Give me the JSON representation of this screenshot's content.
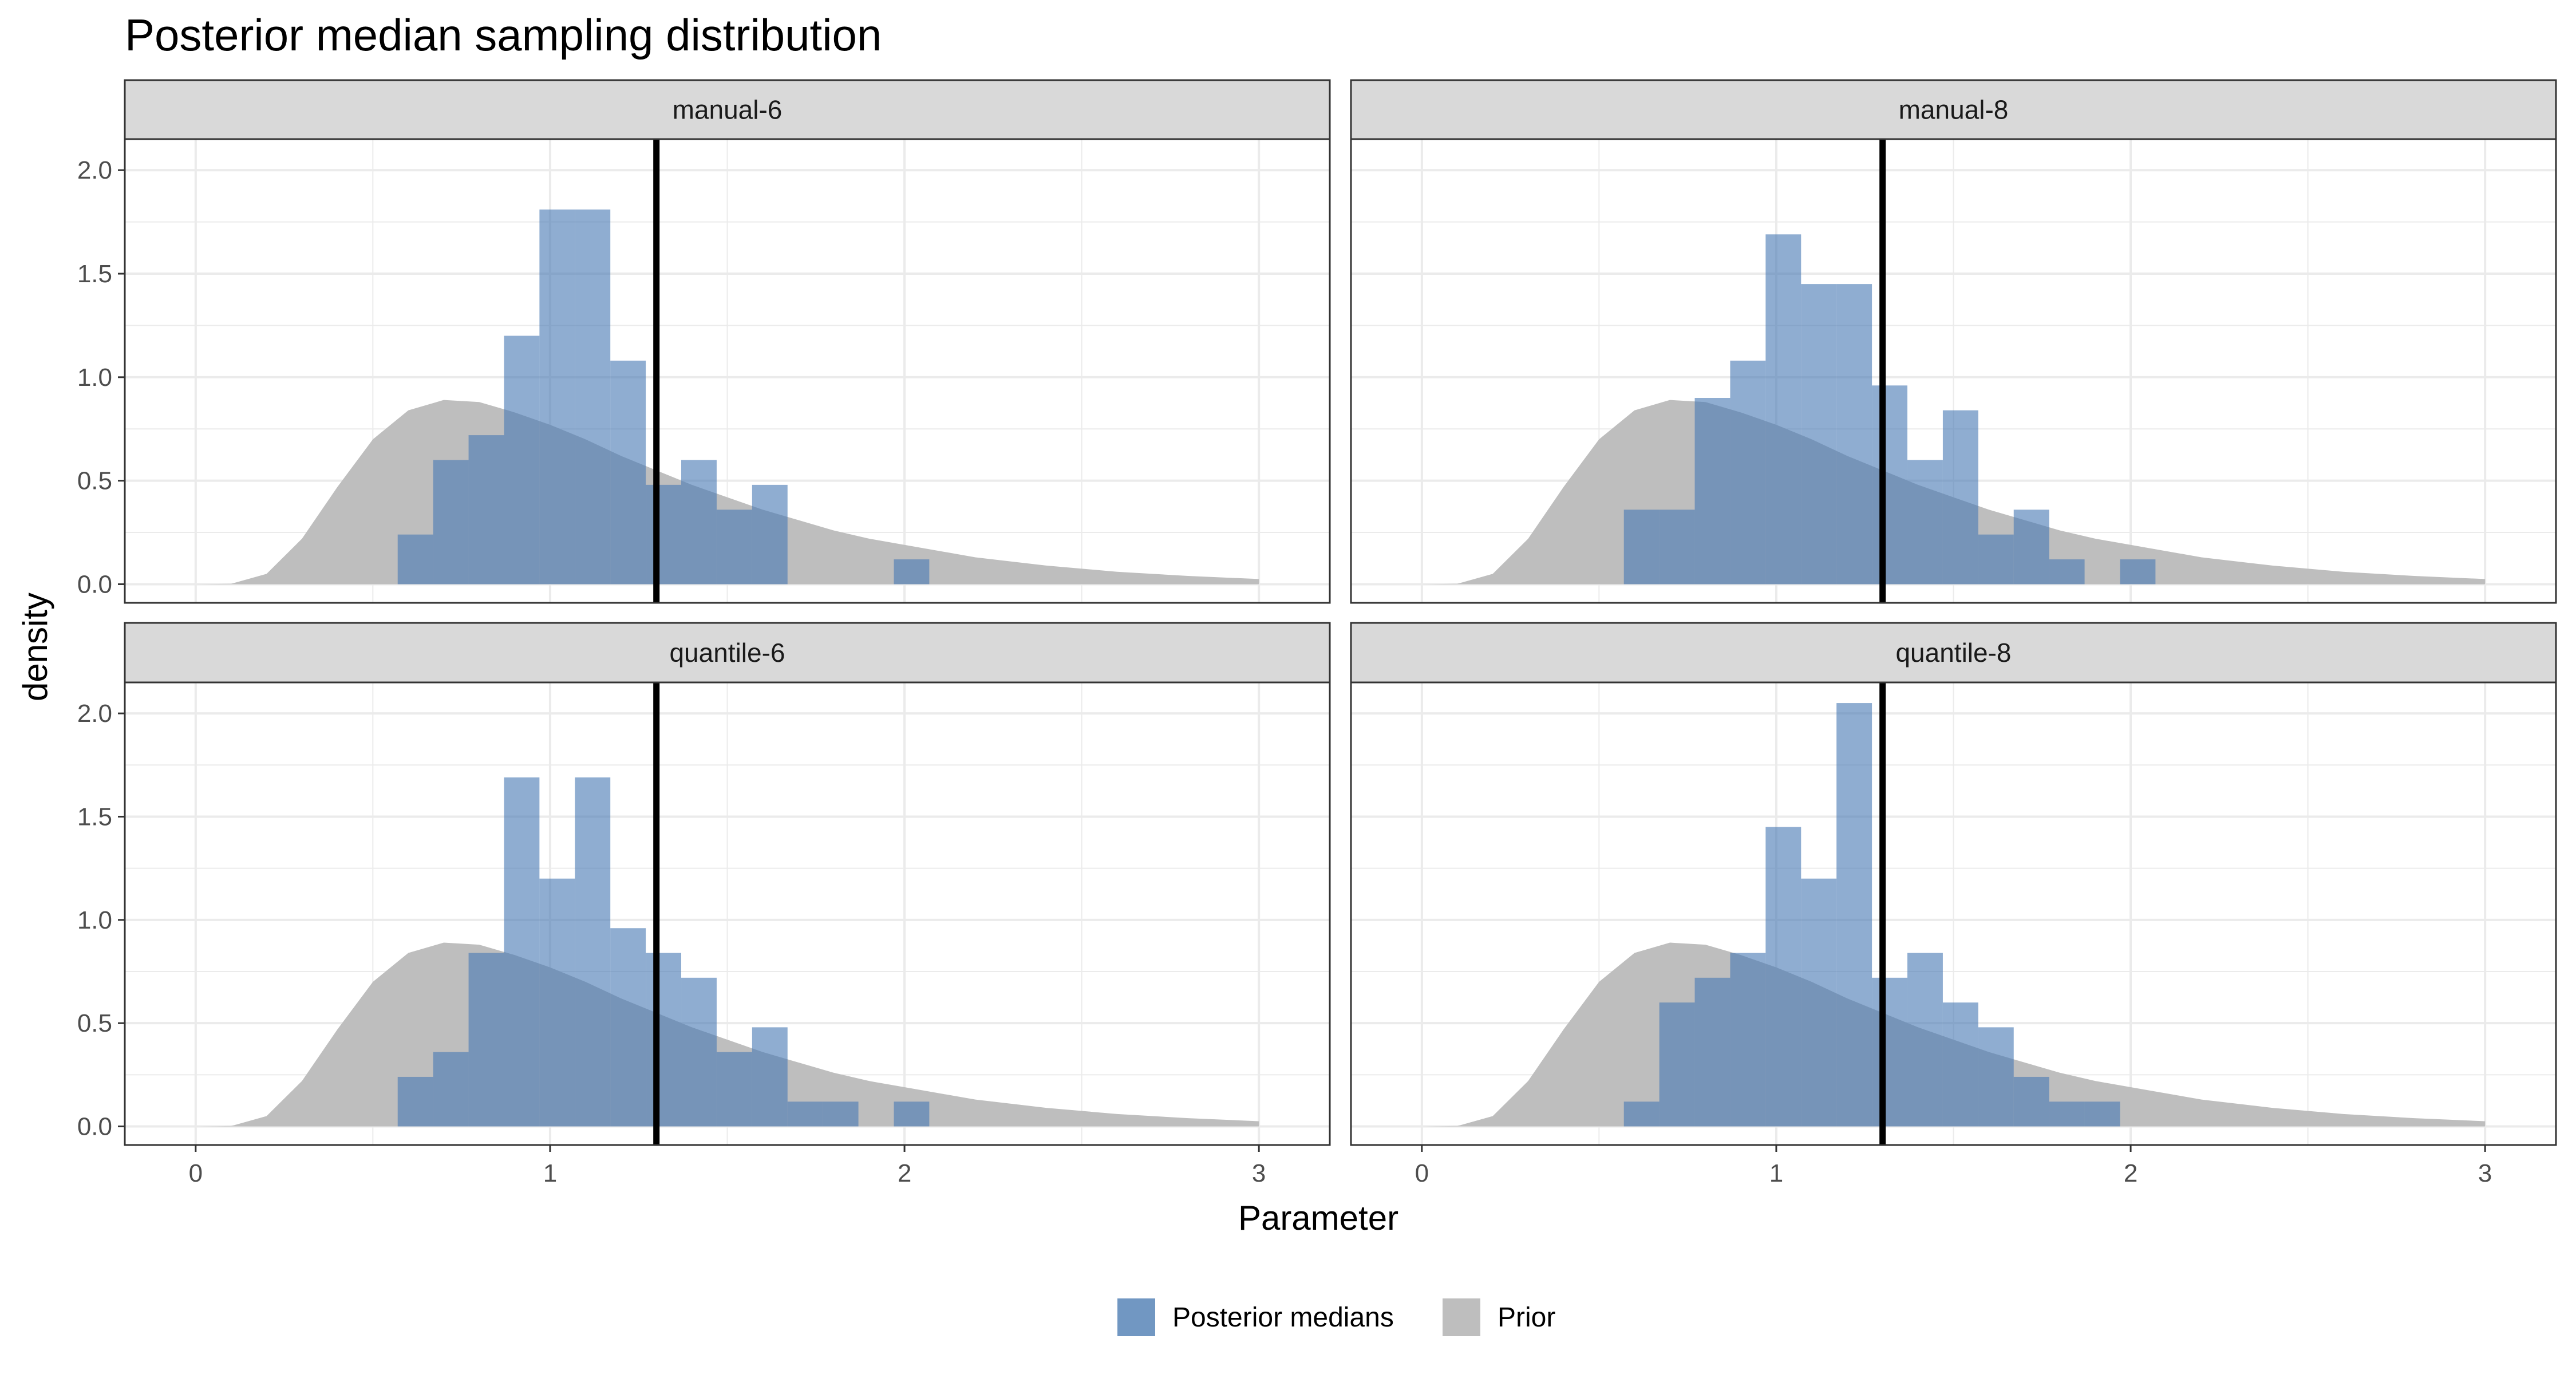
{
  "chart_data": {
    "type": "histogram",
    "title": "Posterior median sampling distribution",
    "xlabel": "Parameter",
    "ylabel": "density",
    "xlim": [
      -0.2,
      3.2
    ],
    "ylim": [
      -0.09,
      2.15
    ],
    "x_ticks": [
      0,
      1,
      2,
      3
    ],
    "x_tick_labels": [
      "0",
      "1",
      "2",
      "3"
    ],
    "y_ticks": [
      0,
      0.5,
      1,
      1.5,
      2
    ],
    "y_tick_labels": [
      "0.0",
      "0.5",
      "1.0",
      "1.5",
      "2.0"
    ],
    "grid": true,
    "reference_line_x": 1.3,
    "legend": {
      "position": "bottom",
      "entries": [
        {
          "name": "Posterior medians",
          "color": "#7197c2"
        },
        {
          "name": "Prior",
          "color": "#bebebe"
        }
      ]
    },
    "colors": {
      "posterior": "#4a7bb4",
      "prior": "#bebebe",
      "reference_line": "#000000",
      "strip_background": "#d9d9d9",
      "grid": "#ebebeb",
      "panel_border": "#333333"
    },
    "prior_density": {
      "x": [
        0,
        0.1,
        0.2,
        0.3,
        0.4,
        0.5,
        0.6,
        0.7,
        0.8,
        0.9,
        1.0,
        1.1,
        1.2,
        1.3,
        1.4,
        1.5,
        1.6,
        1.7,
        1.8,
        1.9,
        2.0,
        2.2,
        2.4,
        2.6,
        2.8,
        3.0
      ],
      "y": [
        0,
        0.002,
        0.05,
        0.22,
        0.47,
        0.7,
        0.84,
        0.89,
        0.88,
        0.83,
        0.77,
        0.7,
        0.62,
        0.55,
        0.48,
        0.42,
        0.36,
        0.31,
        0.26,
        0.22,
        0.19,
        0.13,
        0.09,
        0.06,
        0.04,
        0.025
      ]
    },
    "bin_width": 0.1,
    "panels": [
      {
        "label": "manual-6",
        "bin_starts": [
          0.57,
          0.67,
          0.77,
          0.87,
          0.97,
          1.07,
          1.17,
          1.27,
          1.37,
          1.47,
          1.57,
          1.67,
          1.77,
          1.87,
          1.97,
          2.07
        ],
        "densities": [
          0.24,
          0.6,
          0.72,
          1.2,
          1.81,
          1.81,
          1.08,
          0.48,
          0.6,
          0.36,
          0.48,
          0,
          0,
          0,
          0.12,
          0
        ]
      },
      {
        "label": "manual-8",
        "bin_starts": [
          0.57,
          0.67,
          0.77,
          0.87,
          0.97,
          1.07,
          1.17,
          1.27,
          1.37,
          1.47,
          1.57,
          1.67,
          1.77,
          1.87,
          1.97
        ],
        "densities": [
          0.36,
          0.36,
          0.9,
          1.08,
          1.69,
          1.45,
          1.45,
          0.96,
          0.6,
          0.84,
          0.24,
          0.36,
          0.12,
          0,
          0.12
        ]
      },
      {
        "label": "quantile-6",
        "bin_starts": [
          0.57,
          0.67,
          0.77,
          0.87,
          0.97,
          1.07,
          1.17,
          1.27,
          1.37,
          1.47,
          1.57,
          1.67,
          1.77,
          1.87,
          1.97
        ],
        "densities": [
          0.24,
          0.36,
          0.84,
          1.69,
          1.2,
          1.69,
          0.96,
          0.84,
          0.72,
          0.36,
          0.48,
          0.12,
          0.12,
          0,
          0.12
        ]
      },
      {
        "label": "quantile-8",
        "bin_starts": [
          0.57,
          0.67,
          0.77,
          0.87,
          0.97,
          1.07,
          1.17,
          1.27,
          1.37,
          1.47,
          1.57,
          1.67,
          1.77,
          1.87
        ],
        "densities": [
          0.12,
          0.6,
          0.72,
          0.84,
          1.45,
          1.2,
          2.05,
          0.72,
          0.84,
          0.6,
          0.48,
          0.24,
          0.12,
          0.12
        ]
      }
    ]
  }
}
